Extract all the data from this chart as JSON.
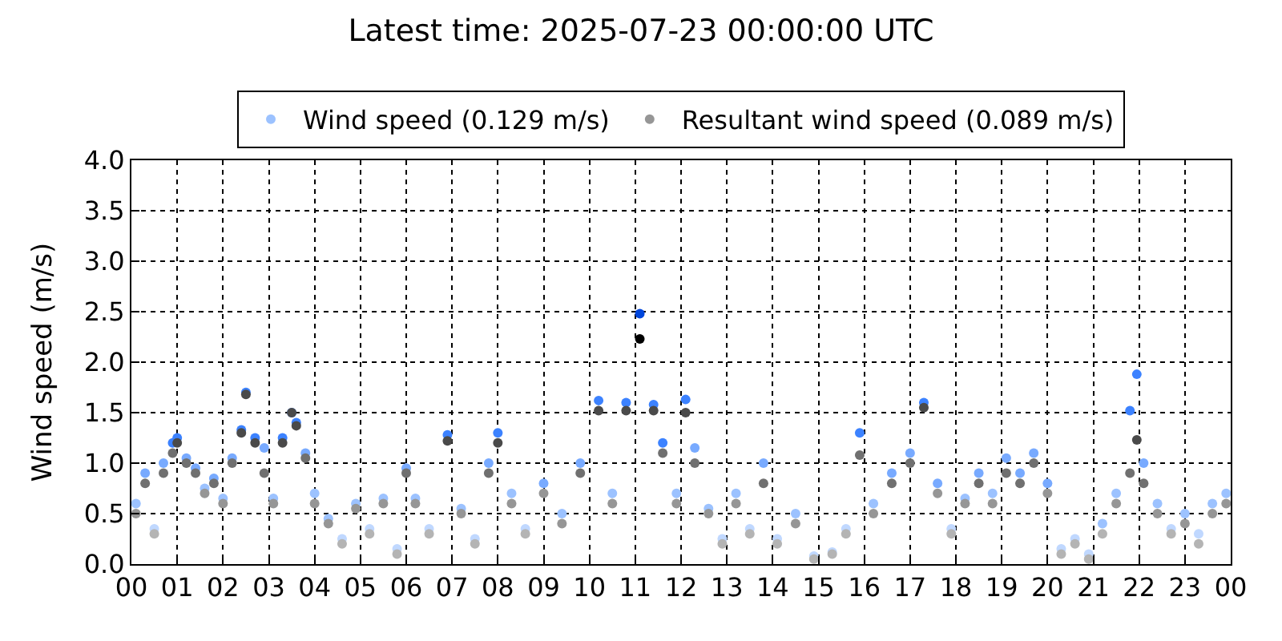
{
  "chart_data": {
    "type": "scatter",
    "title": "Latest time: 2025-07-23 00:00:00 UTC",
    "ylabel": "Wind speed (m/s)",
    "x": [
      0.1,
      0.3,
      0.5,
      0.7,
      0.9,
      1.0,
      1.2,
      1.4,
      1.6,
      1.8,
      2.0,
      2.2,
      2.4,
      2.5,
      2.7,
      2.9,
      3.1,
      3.3,
      3.5,
      3.6,
      3.8,
      4.0,
      4.3,
      4.6,
      4.9,
      5.2,
      5.5,
      5.8,
      6.0,
      6.2,
      6.5,
      6.9,
      7.2,
      7.5,
      7.8,
      8.0,
      8.3,
      8.6,
      9.0,
      9.4,
      9.8,
      10.2,
      10.5,
      10.8,
      11.1,
      11.4,
      11.6,
      11.9,
      12.1,
      12.3,
      12.6,
      12.9,
      13.2,
      13.5,
      13.8,
      14.1,
      14.5,
      14.9,
      15.3,
      15.6,
      15.9,
      16.2,
      16.6,
      17.0,
      17.3,
      17.6,
      17.9,
      18.2,
      18.5,
      18.8,
      19.1,
      19.4,
      19.7,
      20.0,
      20.3,
      20.6,
      20.9,
      21.2,
      21.5,
      21.8,
      21.95,
      22.1,
      22.4,
      22.7,
      23.0,
      23.3,
      23.6,
      23.9
    ],
    "series": [
      {
        "name": "Wind speed (0.129 m/s)",
        "values": [
          0.6,
          0.9,
          0.35,
          1.0,
          1.2,
          1.25,
          1.05,
          0.95,
          0.75,
          0.85,
          0.65,
          1.05,
          1.33,
          1.7,
          1.25,
          1.15,
          0.65,
          1.25,
          1.5,
          1.4,
          1.1,
          0.7,
          0.45,
          0.25,
          0.6,
          0.35,
          0.65,
          0.15,
          0.95,
          0.65,
          0.35,
          1.28,
          0.55,
          0.25,
          1.0,
          1.3,
          0.7,
          0.35,
          0.8,
          0.5,
          1.0,
          1.62,
          0.7,
          1.6,
          2.48,
          1.58,
          1.2,
          0.7,
          1.63,
          1.15,
          0.55,
          0.25,
          0.7,
          0.35,
          1.0,
          0.25,
          0.5,
          0.08,
          0.12,
          0.35,
          1.3,
          0.6,
          0.9,
          1.1,
          1.6,
          0.8,
          0.35,
          0.65,
          0.9,
          0.7,
          1.05,
          0.9,
          1.1,
          0.8,
          0.15,
          0.25,
          0.1,
          0.4,
          0.7,
          1.52,
          1.88,
          1.0,
          0.6,
          0.35,
          0.5,
          0.3,
          0.6,
          0.7
        ],
        "colors": [
          "#9cc2ff",
          "#78aaff",
          "#c0d8ff",
          "#78aaff",
          "#3c82ff",
          "#3c82ff",
          "#78aaff",
          "#78aaff",
          "#9cc2ff",
          "#78aaff",
          "#9cc2ff",
          "#78aaff",
          "#3c82ff",
          "#3c82ff",
          "#3c82ff",
          "#78aaff",
          "#9cc2ff",
          "#3c82ff",
          "#3c82ff",
          "#3c82ff",
          "#78aaff",
          "#9cc2ff",
          "#9cc2ff",
          "#c0d8ff",
          "#9cc2ff",
          "#c0d8ff",
          "#9cc2ff",
          "#c0d8ff",
          "#78aaff",
          "#9cc2ff",
          "#c0d8ff",
          "#3c82ff",
          "#9cc2ff",
          "#c0d8ff",
          "#78aaff",
          "#3c82ff",
          "#9cc2ff",
          "#c0d8ff",
          "#78aaff",
          "#9cc2ff",
          "#78aaff",
          "#3c82ff",
          "#9cc2ff",
          "#3c82ff",
          "#0046dc",
          "#3c82ff",
          "#3c82ff",
          "#9cc2ff",
          "#3c82ff",
          "#78aaff",
          "#9cc2ff",
          "#c0d8ff",
          "#9cc2ff",
          "#c0d8ff",
          "#78aaff",
          "#c0d8ff",
          "#9cc2ff",
          "#c0d8ff",
          "#c0d8ff",
          "#c0d8ff",
          "#3c82ff",
          "#9cc2ff",
          "#78aaff",
          "#78aaff",
          "#3c82ff",
          "#78aaff",
          "#c0d8ff",
          "#9cc2ff",
          "#78aaff",
          "#9cc2ff",
          "#78aaff",
          "#78aaff",
          "#78aaff",
          "#78aaff",
          "#c0d8ff",
          "#c0d8ff",
          "#c0d8ff",
          "#9cc2ff",
          "#9cc2ff",
          "#3c82ff",
          "#3c82ff",
          "#78aaff",
          "#9cc2ff",
          "#c0d8ff",
          "#9cc2ff",
          "#c0d8ff",
          "#9cc2ff",
          "#9cc2ff"
        ]
      },
      {
        "name": "Resultant wind speed (0.089 m/s)",
        "values": [
          0.5,
          0.8,
          0.3,
          0.9,
          1.1,
          1.2,
          1.0,
          0.9,
          0.7,
          0.8,
          0.6,
          1.0,
          1.3,
          1.68,
          1.2,
          0.9,
          0.6,
          1.2,
          1.5,
          1.37,
          1.05,
          0.6,
          0.4,
          0.2,
          0.55,
          0.3,
          0.6,
          0.1,
          0.9,
          0.6,
          0.3,
          1.22,
          0.5,
          0.2,
          0.9,
          1.2,
          0.6,
          0.3,
          0.7,
          0.4,
          0.9,
          1.52,
          0.6,
          1.52,
          2.23,
          1.52,
          1.1,
          0.6,
          1.5,
          1.0,
          0.5,
          0.2,
          0.6,
          0.3,
          0.8,
          0.2,
          0.4,
          0.05,
          0.1,
          0.3,
          1.08,
          0.5,
          0.8,
          1.0,
          1.55,
          0.7,
          0.3,
          0.6,
          0.8,
          0.6,
          0.9,
          0.8,
          1.0,
          0.7,
          0.1,
          0.2,
          0.05,
          0.3,
          0.6,
          0.9,
          1.23,
          0.8,
          0.5,
          0.3,
          0.4,
          0.2,
          0.5,
          0.6
        ],
        "colors": [
          "#969696",
          "#707070",
          "#b4b4b4",
          "#707070",
          "#707070",
          "#4a4a4a",
          "#707070",
          "#707070",
          "#969696",
          "#707070",
          "#969696",
          "#707070",
          "#4a4a4a",
          "#4a4a4a",
          "#4a4a4a",
          "#707070",
          "#969696",
          "#4a4a4a",
          "#4a4a4a",
          "#4a4a4a",
          "#707070",
          "#969696",
          "#969696",
          "#b4b4b4",
          "#969696",
          "#b4b4b4",
          "#969696",
          "#b4b4b4",
          "#707070",
          "#969696",
          "#b4b4b4",
          "#4a4a4a",
          "#969696",
          "#b4b4b4",
          "#707070",
          "#4a4a4a",
          "#969696",
          "#b4b4b4",
          "#969696",
          "#969696",
          "#707070",
          "#4a4a4a",
          "#969696",
          "#4a4a4a",
          "#000000",
          "#4a4a4a",
          "#707070",
          "#969696",
          "#4a4a4a",
          "#707070",
          "#969696",
          "#b4b4b4",
          "#969696",
          "#b4b4b4",
          "#707070",
          "#b4b4b4",
          "#969696",
          "#b4b4b4",
          "#b4b4b4",
          "#b4b4b4",
          "#707070",
          "#969696",
          "#707070",
          "#707070",
          "#4a4a4a",
          "#969696",
          "#b4b4b4",
          "#969696",
          "#707070",
          "#969696",
          "#707070",
          "#707070",
          "#707070",
          "#969696",
          "#b4b4b4",
          "#b4b4b4",
          "#b4b4b4",
          "#b4b4b4",
          "#969696",
          "#707070",
          "#4a4a4a",
          "#707070",
          "#969696",
          "#b4b4b4",
          "#969696",
          "#b4b4b4",
          "#969696",
          "#969696"
        ]
      }
    ],
    "xlim": [
      0,
      24
    ],
    "xticks": [
      {
        "value": 0,
        "label": "00"
      },
      {
        "value": 1,
        "label": "01"
      },
      {
        "value": 2,
        "label": "02"
      },
      {
        "value": 3,
        "label": "03"
      },
      {
        "value": 4,
        "label": "04"
      },
      {
        "value": 5,
        "label": "05"
      },
      {
        "value": 6,
        "label": "06"
      },
      {
        "value": 7,
        "label": "07"
      },
      {
        "value": 8,
        "label": "08"
      },
      {
        "value": 9,
        "label": "09"
      },
      {
        "value": 10,
        "label": "10"
      },
      {
        "value": 11,
        "label": "11"
      },
      {
        "value": 12,
        "label": "12"
      },
      {
        "value": 13,
        "label": "13"
      },
      {
        "value": 14,
        "label": "14"
      },
      {
        "value": 15,
        "label": "15"
      },
      {
        "value": 16,
        "label": "16"
      },
      {
        "value": 17,
        "label": "17"
      },
      {
        "value": 18,
        "label": "18"
      },
      {
        "value": 19,
        "label": "19"
      },
      {
        "value": 20,
        "label": "20"
      },
      {
        "value": 21,
        "label": "21"
      },
      {
        "value": 22,
        "label": "22"
      },
      {
        "value": 23,
        "label": "23"
      },
      {
        "value": 24,
        "label": "00"
      }
    ],
    "ylim": [
      0,
      4
    ],
    "yticks": [
      {
        "value": 0,
        "label": "0.0"
      },
      {
        "value": 0.5,
        "label": "0.5"
      },
      {
        "value": 1,
        "label": "1.0"
      },
      {
        "value": 1.5,
        "label": "1.5"
      },
      {
        "value": 2,
        "label": "2.0"
      },
      {
        "value": 2.5,
        "label": "2.5"
      },
      {
        "value": 3,
        "label": "3.0"
      },
      {
        "value": 3.5,
        "label": "3.5"
      },
      {
        "value": 4,
        "label": "4.0"
      }
    ],
    "grid": true,
    "legend": "top",
    "marker": "circle"
  }
}
